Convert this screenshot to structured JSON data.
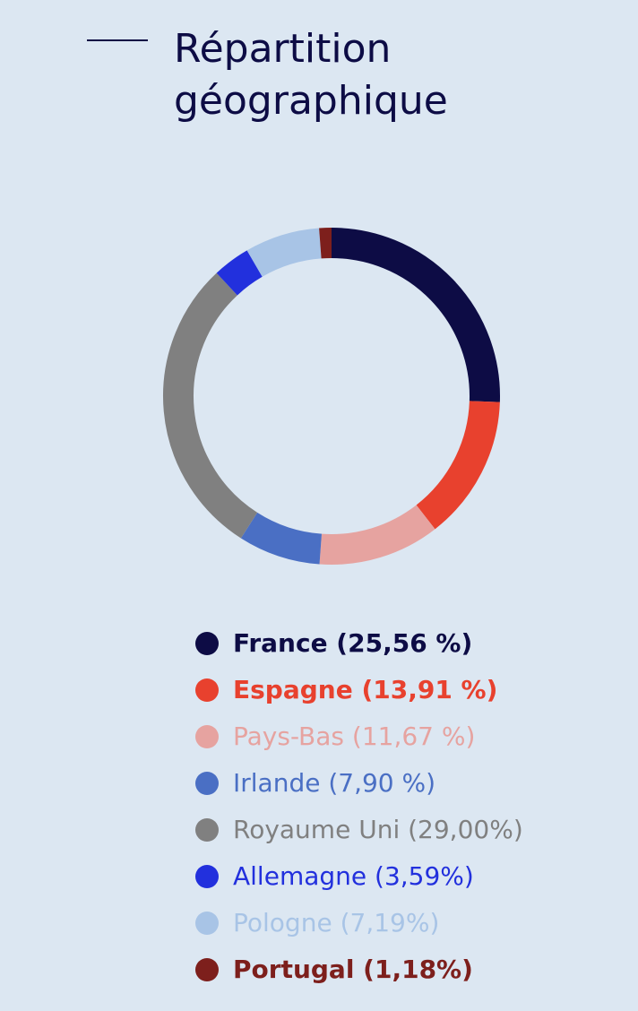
{
  "title_lines": [
    "Répartition",
    "géographique"
  ],
  "chart_data": {
    "type": "pie",
    "variant": "donut",
    "title": "Répartition géographique",
    "legend_placement": "bottom",
    "slices": [
      {
        "label": "France (25,56 %)",
        "name": "France",
        "value": 25.56,
        "color": "#0d0c45",
        "bold": true
      },
      {
        "label": "Espagne (13,91 %)",
        "name": "Espagne",
        "value": 13.91,
        "color": "#e8412e",
        "bold": true
      },
      {
        "label": "Pays-Bas (11,67 %)",
        "name": "Pays-Bas",
        "value": 11.67,
        "color": "#e6a3a0",
        "bold": false
      },
      {
        "label": "Irlande (7,90 %)",
        "name": "Irlande",
        "value": 7.9,
        "color": "#4a6fc4",
        "bold": false
      },
      {
        "label": "Royaume Uni (29,00%)",
        "name": "Royaume Uni",
        "value": 29.0,
        "color": "#808080",
        "bold": false
      },
      {
        "label": "Allemagne (3,59%)",
        "name": "Allemagne",
        "value": 3.59,
        "color": "#2230dd",
        "bold": false
      },
      {
        "label": "Pologne (7,19%)",
        "name": "Pologne",
        "value": 7.19,
        "color": "#a8c4e6",
        "bold": false
      },
      {
        "label": "Portugal (1,18%)",
        "name": "Portugal",
        "value": 1.18,
        "color": "#7d1f1c",
        "bold": true
      }
    ]
  }
}
